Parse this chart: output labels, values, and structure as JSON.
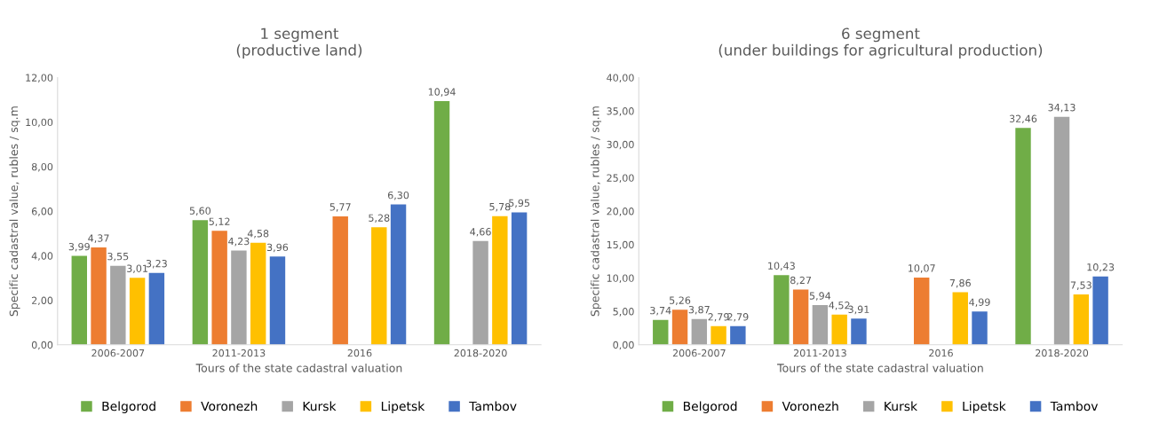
{
  "chart_data": [
    {
      "type": "bar",
      "title": "1 segment\n(productive land)",
      "xlabel": "Tours of the state cadastral valuation",
      "ylabel": "Specific cadastral value, rubles / sq.m",
      "categories": [
        "2006-2007",
        "2011-2013",
        "2016",
        "2018-2020"
      ],
      "ylim": [
        0,
        12
      ],
      "yticks": [
        {
          "value": 0,
          "label": "0,00"
        },
        {
          "value": 2,
          "label": "2,00"
        },
        {
          "value": 4,
          "label": "4,00"
        },
        {
          "value": 6,
          "label": "6,00"
        },
        {
          "value": 8,
          "label": "8,00"
        },
        {
          "value": 10,
          "label": "10,00"
        },
        {
          "value": 12,
          "label": "12,00"
        }
      ],
      "grid": false,
      "legend": "bottom",
      "series": [
        {
          "name": "Belgorod",
          "color": "#70ad47",
          "values": [
            3.99,
            5.6,
            null,
            10.94
          ],
          "value_labels": [
            "3,99",
            "5,60",
            null,
            "10,94"
          ]
        },
        {
          "name": "Voronezh",
          "color": "#ed7d31",
          "values": [
            4.37,
            5.12,
            5.77,
            null
          ],
          "value_labels": [
            "4,37",
            "5,12",
            "5,77",
            null
          ]
        },
        {
          "name": "Kursk",
          "color": "#a5a5a5",
          "values": [
            3.55,
            4.23,
            null,
            4.66
          ],
          "value_labels": [
            "3,55",
            "4,23",
            null,
            "4,66"
          ]
        },
        {
          "name": "Lipetsk",
          "color": "#ffc000",
          "values": [
            3.01,
            4.58,
            5.28,
            5.78
          ],
          "value_labels": [
            "3,01",
            "4,58",
            "5,28",
            "5,78"
          ]
        },
        {
          "name": "Tambov",
          "color": "#4472c4",
          "values": [
            3.23,
            3.96,
            6.3,
            5.95
          ],
          "value_labels": [
            "3,23",
            "3,96",
            "6,30",
            "5,95"
          ]
        }
      ]
    },
    {
      "type": "bar",
      "title": "6 segment\n(under buildings for agricultural production)",
      "xlabel": "Tours of the state cadastral valuation",
      "ylabel": "Specific cadastral value, rubles / sq.m",
      "categories": [
        "2006-2007",
        "2011-2013",
        "2016",
        "2018-2020"
      ],
      "ylim": [
        0,
        40
      ],
      "yticks": [
        {
          "value": 0,
          "label": "0,00"
        },
        {
          "value": 5,
          "label": "5,00"
        },
        {
          "value": 10,
          "label": "10,00"
        },
        {
          "value": 15,
          "label": "15,00"
        },
        {
          "value": 20,
          "label": "20,00"
        },
        {
          "value": 25,
          "label": "25,00"
        },
        {
          "value": 30,
          "label": "30,00"
        },
        {
          "value": 35,
          "label": "35,00"
        },
        {
          "value": 40,
          "label": "40,00"
        }
      ],
      "grid": false,
      "legend": "bottom",
      "series": [
        {
          "name": "Belgorod",
          "color": "#70ad47",
          "values": [
            3.74,
            10.43,
            null,
            32.46
          ],
          "value_labels": [
            "3,74",
            "10,43",
            null,
            "32,46"
          ]
        },
        {
          "name": "Voronezh",
          "color": "#ed7d31",
          "values": [
            5.26,
            8.27,
            10.07,
            null
          ],
          "value_labels": [
            "5,26",
            "8,27",
            "10,07",
            null
          ]
        },
        {
          "name": "Kursk",
          "color": "#a5a5a5",
          "values": [
            3.87,
            5.94,
            null,
            34.13
          ],
          "value_labels": [
            "3,87",
            "5,94",
            null,
            "34,13"
          ]
        },
        {
          "name": "Lipetsk",
          "color": "#ffc000",
          "values": [
            2.79,
            4.52,
            7.86,
            7.53
          ],
          "value_labels": [
            "2,79",
            "4,52",
            "7,86",
            "7,53"
          ]
        },
        {
          "name": "Tambov",
          "color": "#4472c4",
          "values": [
            2.79,
            3.91,
            4.99,
            10.23
          ],
          "value_labels": [
            "2,79",
            "3,91",
            "4,99",
            "10,23"
          ]
        }
      ]
    }
  ]
}
